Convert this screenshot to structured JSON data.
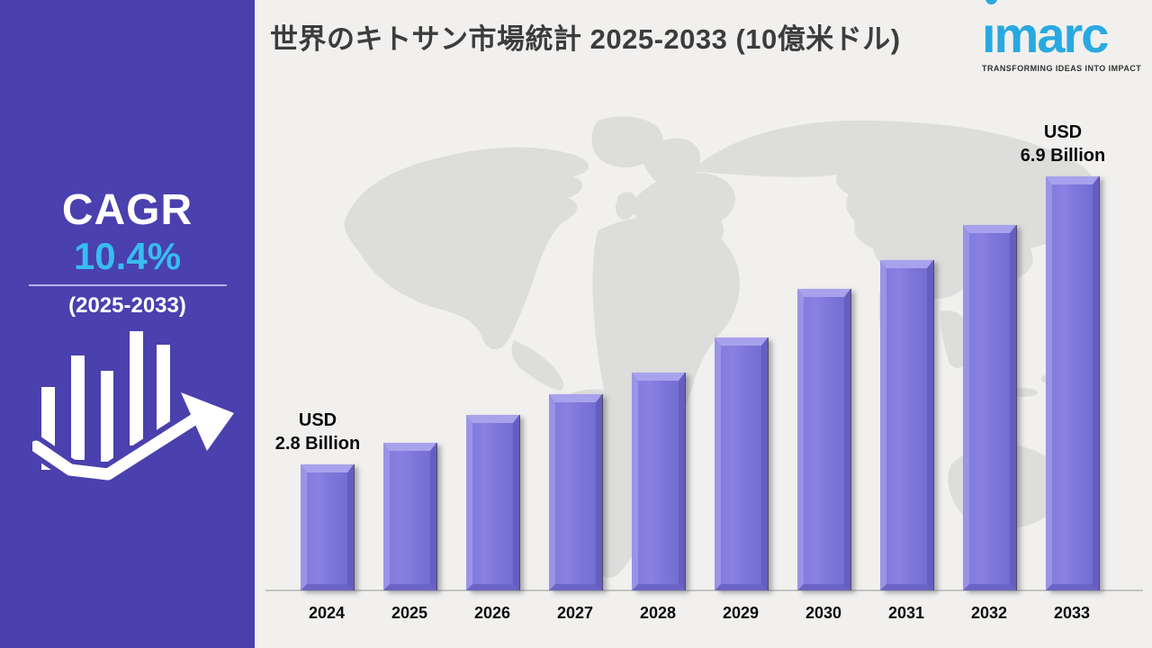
{
  "page": {
    "background_color": "#f1f0ee"
  },
  "sidebar": {
    "background_color": "#4a40ae",
    "accent_color": "#38bdf0",
    "cagr_label": "CAGR",
    "cagr_value": "10.4%",
    "cagr_period": "(2025-2033)",
    "icon": "growth-bar-chart-arrow"
  },
  "header": {
    "title": "世界のキトサン市場統計 2025-2033 (10億米ドル)"
  },
  "logo": {
    "brand": "imarc",
    "tagline": "TRANSFORMING IDEAS INTO IMPACT",
    "brand_color": "#29a9e1"
  },
  "chart_data": {
    "type": "bar",
    "title": "世界のキトサン市場統計 2025-2033 (10億米ドル)",
    "unit": "USD Billion (10億米ドル)",
    "categories": [
      "2024",
      "2025",
      "2026",
      "2027",
      "2028",
      "2029",
      "2030",
      "2031",
      "2032",
      "2033"
    ],
    "values": [
      2.8,
      3.1,
      3.5,
      3.8,
      4.1,
      4.6,
      5.3,
      5.7,
      6.2,
      6.9
    ],
    "values_note": "Only 2024 (USD 2.8 Billion) and 2033 (USD 6.9 Billion) are labeled on the chart; intermediate values estimated from bar heights",
    "labeled_points": [
      {
        "category": "2024",
        "label_lines": [
          "USD",
          "2.8 Billion"
        ]
      },
      {
        "category": "2033",
        "label_lines": [
          "USD",
          "6.9 Billion"
        ]
      }
    ],
    "bar_color": "#7d76da",
    "bar_bevel_light": "#a8a2ec",
    "bar_bevel_dark": "#655ec0",
    "background": "light gray world map",
    "gridlines": "off",
    "legend": "none",
    "value_axis": "hidden",
    "cagr": "10.4%",
    "cagr_period": "2025-2033"
  }
}
